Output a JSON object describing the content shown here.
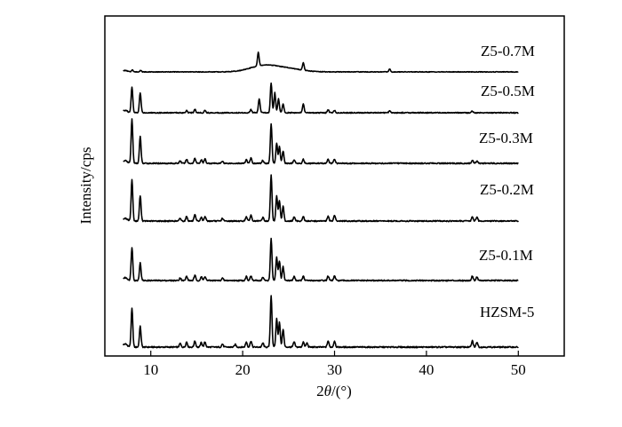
{
  "chart_data": {
    "type": "line",
    "xlabel_prefix": "2",
    "xlabel_symbol": "θ",
    "xlabel_suffix": "/(°)",
    "ylabel": "Intensity/cps",
    "xlim": [
      5,
      55
    ],
    "xticks": [
      10,
      20,
      30,
      40,
      50
    ],
    "x_start": 7,
    "x_end": 50,
    "baseline_peak": {
      "x": 7.2,
      "height": 0.06
    },
    "series": [
      {
        "name": "HZSM-5",
        "peaks": [
          [
            7.95,
            0.75
          ],
          [
            8.85,
            0.4
          ],
          [
            13.2,
            0.07
          ],
          [
            13.9,
            0.1
          ],
          [
            14.8,
            0.12
          ],
          [
            15.5,
            0.09
          ],
          [
            15.9,
            0.1
          ],
          [
            17.8,
            0.06
          ],
          [
            19.2,
            0.05
          ],
          [
            20.4,
            0.1
          ],
          [
            20.9,
            0.12
          ],
          [
            22.2,
            0.08
          ],
          [
            23.1,
            1.0
          ],
          [
            23.7,
            0.55
          ],
          [
            24.0,
            0.48
          ],
          [
            24.4,
            0.35
          ],
          [
            25.6,
            0.1
          ],
          [
            26.6,
            0.1
          ],
          [
            27.0,
            0.08
          ],
          [
            29.3,
            0.12
          ],
          [
            30.0,
            0.12
          ],
          [
            45.0,
            0.12
          ],
          [
            45.5,
            0.1
          ]
        ]
      },
      {
        "name": "Z5-0.1M",
        "peaks": [
          [
            7.95,
            0.72
          ],
          [
            8.85,
            0.38
          ],
          [
            13.2,
            0.06
          ],
          [
            13.9,
            0.09
          ],
          [
            14.8,
            0.11
          ],
          [
            15.5,
            0.08
          ],
          [
            15.9,
            0.09
          ],
          [
            17.8,
            0.05
          ],
          [
            20.4,
            0.09
          ],
          [
            20.9,
            0.1
          ],
          [
            22.2,
            0.07
          ],
          [
            23.1,
            0.9
          ],
          [
            23.7,
            0.5
          ],
          [
            24.0,
            0.42
          ],
          [
            24.4,
            0.3
          ],
          [
            25.6,
            0.09
          ],
          [
            26.6,
            0.09
          ],
          [
            29.3,
            0.1
          ],
          [
            30.0,
            0.1
          ],
          [
            45.0,
            0.1
          ],
          [
            45.5,
            0.08
          ]
        ]
      },
      {
        "name": "Z5-0.2M",
        "peaks": [
          [
            7.95,
            0.9
          ],
          [
            8.85,
            0.55
          ],
          [
            13.2,
            0.06
          ],
          [
            13.9,
            0.1
          ],
          [
            14.8,
            0.13
          ],
          [
            15.5,
            0.08
          ],
          [
            15.9,
            0.1
          ],
          [
            17.8,
            0.06
          ],
          [
            20.4,
            0.1
          ],
          [
            20.9,
            0.13
          ],
          [
            22.2,
            0.08
          ],
          [
            23.1,
            1.0
          ],
          [
            23.7,
            0.55
          ],
          [
            24.0,
            0.45
          ],
          [
            24.4,
            0.32
          ],
          [
            25.6,
            0.09
          ],
          [
            26.6,
            0.1
          ],
          [
            29.3,
            0.11
          ],
          [
            30.0,
            0.12
          ],
          [
            45.0,
            0.1
          ],
          [
            45.5,
            0.09
          ]
        ]
      },
      {
        "name": "Z5-0.3M",
        "peaks": [
          [
            7.95,
            1.0
          ],
          [
            8.85,
            0.6
          ],
          [
            13.2,
            0.06
          ],
          [
            13.9,
            0.09
          ],
          [
            14.8,
            0.12
          ],
          [
            15.5,
            0.08
          ],
          [
            15.9,
            0.1
          ],
          [
            17.8,
            0.05
          ],
          [
            20.4,
            0.09
          ],
          [
            20.9,
            0.12
          ],
          [
            22.2,
            0.07
          ],
          [
            23.1,
            0.9
          ],
          [
            23.7,
            0.45
          ],
          [
            24.0,
            0.38
          ],
          [
            24.4,
            0.28
          ],
          [
            25.6,
            0.08
          ],
          [
            26.6,
            0.09
          ],
          [
            29.3,
            0.09
          ],
          [
            30.0,
            0.1
          ],
          [
            45.0,
            0.07
          ],
          [
            45.5,
            0.06
          ]
        ]
      },
      {
        "name": "Z5-0.5M",
        "peaks": [
          [
            7.95,
            0.65
          ],
          [
            8.85,
            0.5
          ],
          [
            13.9,
            0.06
          ],
          [
            14.8,
            0.09
          ],
          [
            15.9,
            0.06
          ],
          [
            20.9,
            0.08
          ],
          [
            21.8,
            0.35
          ],
          [
            23.1,
            0.75
          ],
          [
            23.5,
            0.5
          ],
          [
            23.9,
            0.35
          ],
          [
            24.4,
            0.22
          ],
          [
            26.6,
            0.22
          ],
          [
            29.3,
            0.07
          ],
          [
            30.0,
            0.06
          ],
          [
            36.0,
            0.05
          ],
          [
            45.0,
            0.04
          ]
        ]
      },
      {
        "name": "Z5-0.7M",
        "peaks": [
          [
            8.0,
            0.08
          ],
          [
            8.9,
            0.06
          ],
          [
            21.7,
            0.55
          ],
          [
            26.6,
            0.3
          ],
          [
            36.0,
            0.12
          ]
        ],
        "humps": [
          [
            22.3,
            0.25,
            1.5
          ],
          [
            25.0,
            0.12,
            1.5
          ]
        ]
      }
    ]
  }
}
